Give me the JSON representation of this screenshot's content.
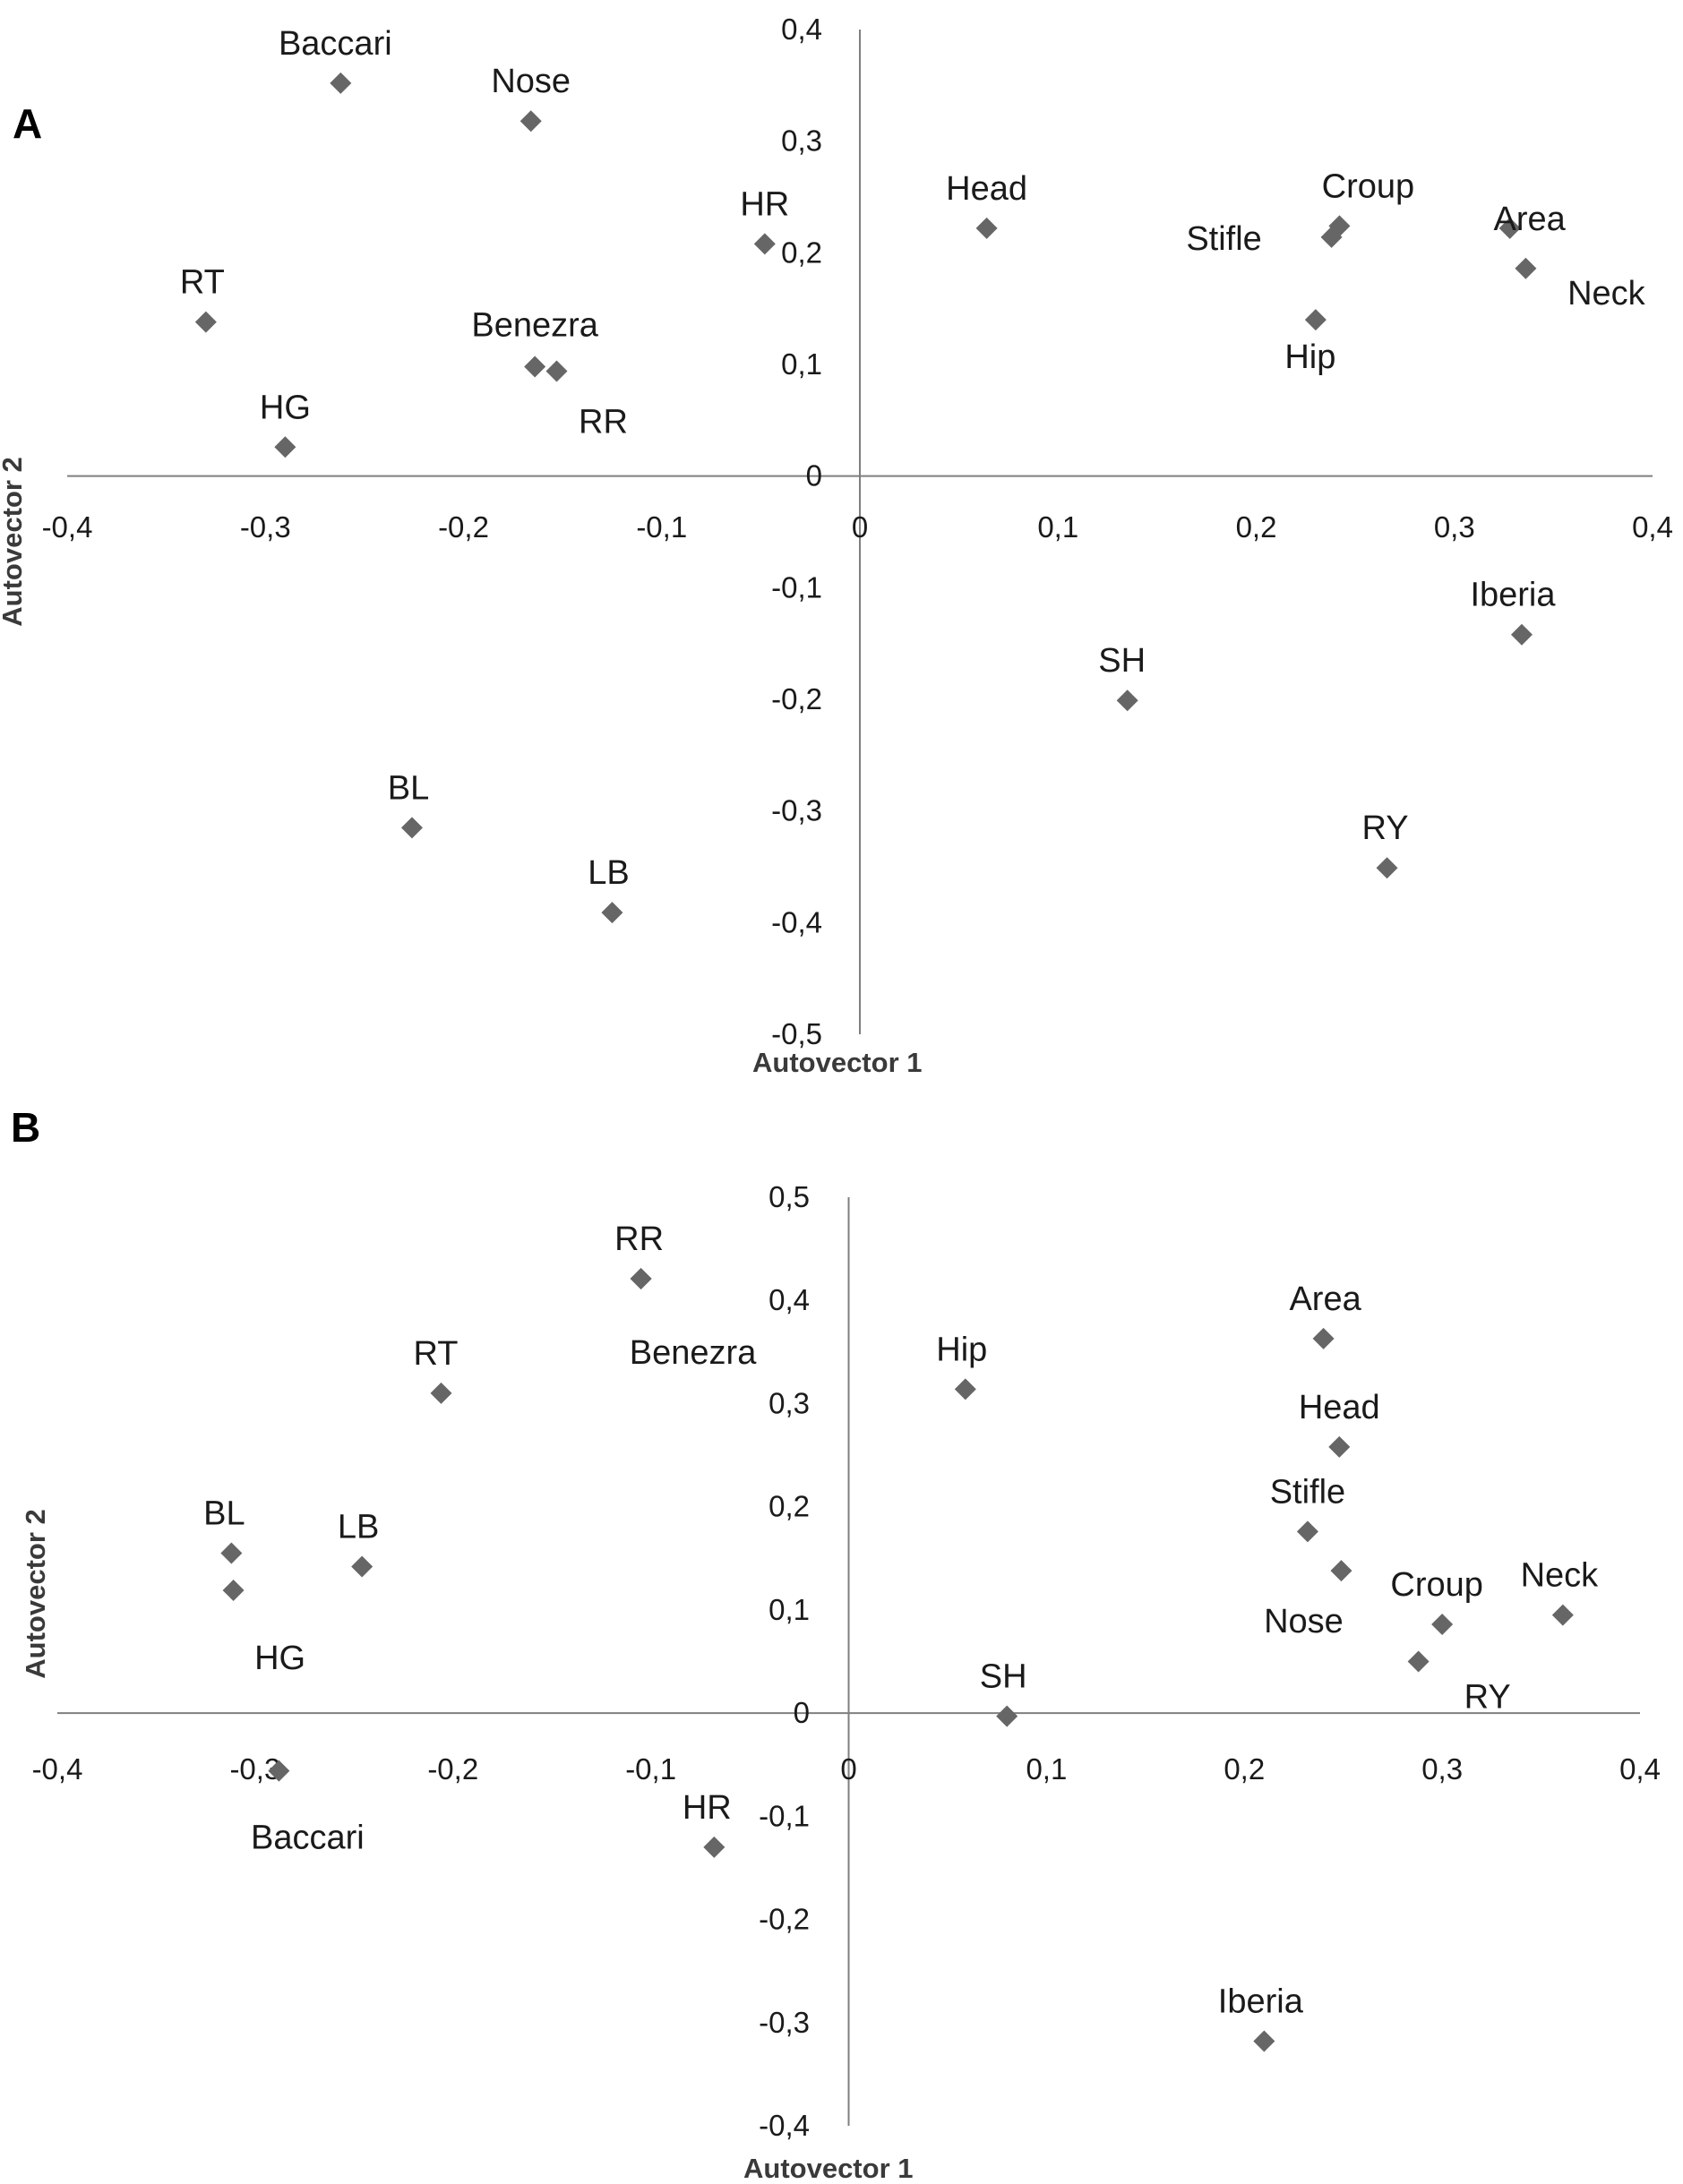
{
  "chart_data": [
    {
      "panel": "A",
      "type": "scatter",
      "xlabel": "Autovector 1",
      "ylabel": "Autovector 2",
      "xlim": [
        -0.4,
        0.4
      ],
      "ylim": [
        -0.5,
        0.4
      ],
      "x_ticks": [
        "-0,4",
        "-0,3",
        "-0,2",
        "-0,1",
        "0",
        "0,1",
        "0,2",
        "0,3",
        "0,4"
      ],
      "y_ticks": [
        "0,4",
        "0,3",
        "0,2",
        "0,1",
        "0",
        "-0,1",
        "-0,2",
        "-0,3",
        "-0,4",
        "-0,5"
      ],
      "marker_color": "#666666",
      "points": [
        {
          "label": "Baccari",
          "x": -0.262,
          "y": 0.352
        },
        {
          "label": "Nose",
          "x": -0.166,
          "y": 0.318
        },
        {
          "label": "HR",
          "x": -0.048,
          "y": 0.208
        },
        {
          "label": "Head",
          "x": 0.064,
          "y": 0.222
        },
        {
          "label": "RT",
          "x": -0.33,
          "y": 0.138
        },
        {
          "label": "Benezra",
          "x": -0.164,
          "y": 0.098
        },
        {
          "label": "RR",
          "x": -0.153,
          "y": 0.094
        },
        {
          "label": "HG",
          "x": -0.29,
          "y": 0.026
        },
        {
          "label": "Croup",
          "x": 0.242,
          "y": 0.224
        },
        {
          "label": "Stifle",
          "x": 0.238,
          "y": 0.214
        },
        {
          "label": "Hip",
          "x": 0.23,
          "y": 0.14
        },
        {
          "label": "Area",
          "x": 0.328,
          "y": 0.222
        },
        {
          "label": "Neck",
          "x": 0.336,
          "y": 0.186
        },
        {
          "label": "Iberia",
          "x": 0.334,
          "y": -0.142
        },
        {
          "label": "SH",
          "x": 0.135,
          "y": -0.201
        },
        {
          "label": "RY",
          "x": 0.266,
          "y": -0.351
        },
        {
          "label": "BL",
          "x": -0.226,
          "y": -0.315
        },
        {
          "label": "LB",
          "x": -0.125,
          "y": -0.391
        }
      ]
    },
    {
      "panel": "B",
      "type": "scatter",
      "xlabel": "Autovector 1",
      "ylabel": "Autovector 2",
      "xlim": [
        -0.4,
        0.4
      ],
      "ylim": [
        -0.4,
        0.5
      ],
      "x_ticks": [
        "-0,4",
        "-0,3",
        "-0,2",
        "-0,1",
        "0",
        "0,1",
        "0,2",
        "0,3",
        "0,4"
      ],
      "y_ticks": [
        "0,5",
        "0,4",
        "0,3",
        "0,2",
        "0,1",
        "0",
        "-0,1",
        "-0,2",
        "-0,3",
        "-0,4"
      ],
      "marker_color": "#666666",
      "points": [
        {
          "label": "RR",
          "x": -0.105,
          "y": 0.421
        },
        {
          "label": "Benezra",
          "x": -0.105,
          "y": 0.421
        },
        {
          "label": "RT",
          "x": -0.206,
          "y": 0.31
        },
        {
          "label": "Hip",
          "x": 0.059,
          "y": 0.314
        },
        {
          "label": "Area",
          "x": 0.24,
          "y": 0.363
        },
        {
          "label": "Head",
          "x": 0.248,
          "y": 0.258
        },
        {
          "label": "Stifle",
          "x": 0.232,
          "y": 0.176
        },
        {
          "label": "Nose",
          "x": 0.249,
          "y": 0.138
        },
        {
          "label": "Croup",
          "x": 0.3,
          "y": 0.086
        },
        {
          "label": "RY",
          "x": 0.288,
          "y": 0.05
        },
        {
          "label": "Neck",
          "x": 0.361,
          "y": 0.095
        },
        {
          "label": "BL",
          "x": -0.312,
          "y": 0.155
        },
        {
          "label": "HG",
          "x": -0.311,
          "y": 0.119
        },
        {
          "label": "LB",
          "x": -0.246,
          "y": 0.142
        },
        {
          "label": "Baccari",
          "x": -0.288,
          "y": -0.056
        },
        {
          "label": "SH",
          "x": 0.08,
          "y": -0.003
        },
        {
          "label": "HR",
          "x": -0.068,
          "y": -0.13
        },
        {
          "label": "Iberia",
          "x": 0.21,
          "y": -0.318
        }
      ]
    }
  ]
}
